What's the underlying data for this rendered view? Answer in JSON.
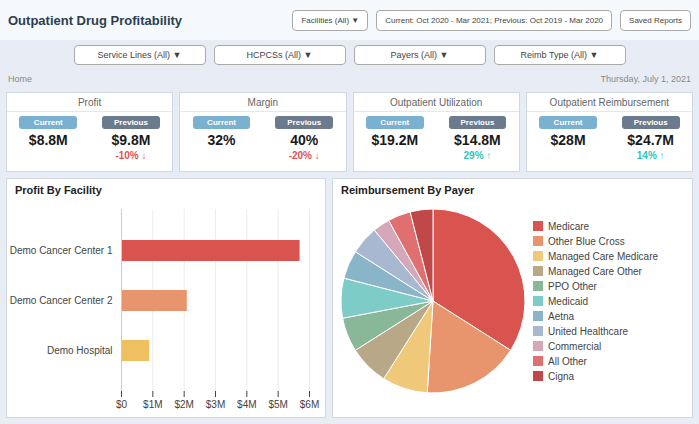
{
  "title": "Outpatient Drug Profitability",
  "buttons": [
    "Facilities (All) ▼",
    "Current: Oct 2020 - Mar 2021; Previous: Oct 2019 - Mar 2020",
    "Saved Reports"
  ],
  "filters": [
    "Service Lines (All) ▼",
    "HCPCSs (All) ▼",
    "Payers (All) ▼",
    "Reimb Type (All) ▼"
  ],
  "breadcrumb": "Home",
  "date": "Thursday, July 1, 2021",
  "badges": [
    {
      "text": "Current",
      "color": "#7ab0d0"
    },
    {
      "text": "Previous",
      "color": "#6c7a8d"
    }
  ],
  "kpi_cards": [
    {
      "title": "Profit",
      "current_value": "$8.8M",
      "previous_value": "$9.8M",
      "change": "-10% ↓",
      "color": "#e05252"
    },
    {
      "title": "Margin",
      "current_value": "32%",
      "previous_value": "40%",
      "change": "-20% ↓",
      "color": "#e05252"
    },
    {
      "title": "Outpatient Utilization",
      "current_value": "$19.2M",
      "previous_value": "$14.8M",
      "change": "29% ↑",
      "color": "#2ec4b6"
    },
    {
      "title": "Outpatient Reimbursement",
      "current_value": "$28M",
      "previous_value": "$24.7M",
      "change": "14% ↑",
      "color": "#2ec4b6"
    }
  ],
  "chart_data": [
    {
      "type": "bar",
      "title": "Profit By Facility",
      "orientation": "horizontal",
      "categories": [
        "Demo Hospital",
        "Demo Cancer Center 2",
        "Demo Cancer Center 1"
      ],
      "values": [
        0.9,
        2.1,
        5.7
      ],
      "colors": [
        "#f0c060",
        "#e8956d",
        "#d9534f"
      ],
      "xlim": [
        0,
        6
      ],
      "xticks": [
        {
          "value": 0,
          "label": "$0"
        },
        {
          "value": 1,
          "label": "$1M"
        },
        {
          "value": 2,
          "label": "$2M"
        },
        {
          "value": 3,
          "label": "$3M"
        },
        {
          "value": 4,
          "label": "$4M"
        },
        {
          "value": 5,
          "label": "$5M"
        },
        {
          "value": 6,
          "label": "$6M"
        }
      ],
      "grid": true
    },
    {
      "type": "pie",
      "title": "Reimbursement By Payer",
      "categories": [
        "Medicare",
        "Other Blue Cross",
        "Managed Care Medicare",
        "Managed Care Other",
        "PPO Other",
        "Medicaid",
        "Aetna",
        "United Healthcare",
        "Commercial",
        "All Other",
        "Cigna"
      ],
      "values": [
        34,
        17,
        8,
        7,
        6,
        7,
        5,
        5,
        3,
        4,
        4
      ],
      "colors": [
        "#d9534f",
        "#e8956d",
        "#f0c87a",
        "#b8a888",
        "#88b898",
        "#7eccc8",
        "#8ab4c8",
        "#a8b8d0",
        "#d4a8b8",
        "#e07070",
        "#c04848"
      ],
      "legend": "right"
    }
  ]
}
